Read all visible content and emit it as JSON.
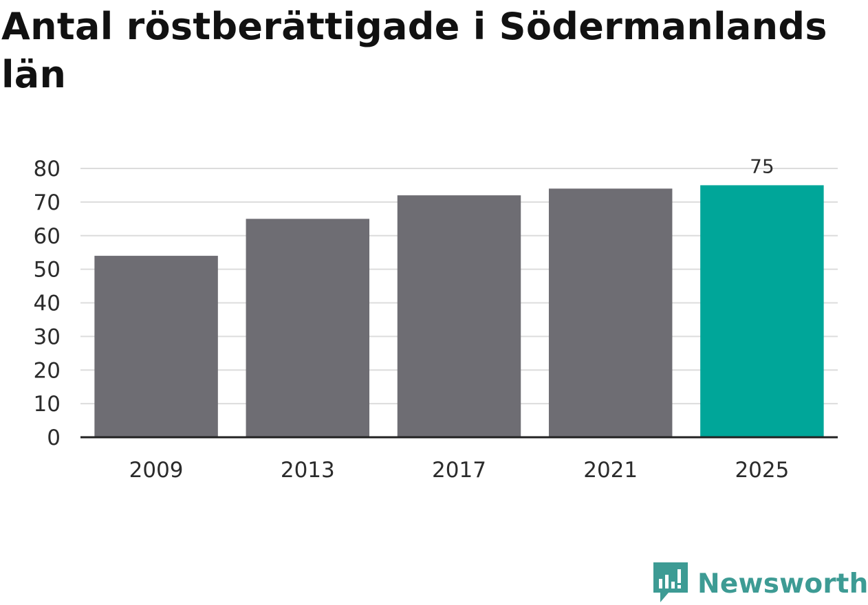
{
  "colors": {
    "bar": "#6e6d73",
    "highlight": "#00a699",
    "grid": "#dcdcdc",
    "axis": "#222222",
    "text": "#2b2b2b",
    "brand": "#3d9b94"
  },
  "brand": {
    "name": "Newsworthy",
    "icon": "chart-bubble-icon"
  },
  "chart_data": {
    "type": "bar",
    "title": "Antal röstberättigade i Södermanlands län",
    "xlabel": "",
    "ylabel": "",
    "categories": [
      "2009",
      "2013",
      "2017",
      "2021",
      "2025"
    ],
    "values": [
      54,
      65,
      72,
      74,
      75
    ],
    "highlight_index": 4,
    "data_labels": [
      "",
      "",
      "",
      "",
      "75"
    ],
    "ylim": [
      0,
      80
    ],
    "yticks": [
      0,
      10,
      20,
      30,
      40,
      50,
      60,
      70,
      80
    ],
    "grid": true,
    "legend": "none"
  }
}
